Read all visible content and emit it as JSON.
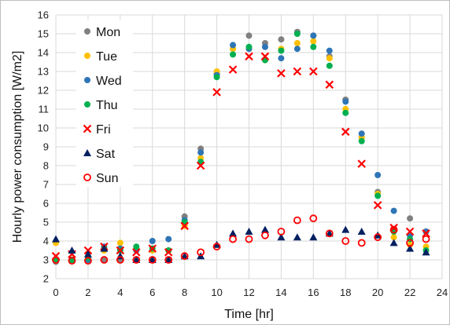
{
  "chart_data": {
    "type": "scatter",
    "xlabel": "Time [hr]",
    "ylabel": "Hourly power consumption [W/m2]",
    "xlim": [
      0,
      24
    ],
    "ylim": [
      2,
      16
    ],
    "x_ticks": [
      0,
      2,
      4,
      6,
      8,
      10,
      12,
      14,
      16,
      18,
      20,
      22,
      24
    ],
    "y_ticks": [
      2,
      3,
      4,
      5,
      6,
      7,
      8,
      9,
      10,
      11,
      12,
      13,
      14,
      15,
      16
    ],
    "grid": true,
    "legend_position": "top-left",
    "x": [
      0,
      1,
      2,
      3,
      4,
      5,
      6,
      7,
      8,
      9,
      10,
      11,
      12,
      13,
      14,
      15,
      16,
      17,
      18,
      19,
      20,
      21,
      22,
      23
    ],
    "series": [
      {
        "name": "Mon",
        "marker": "circle",
        "color": "#808080",
        "values": [
          2.9,
          3.0,
          3.0,
          3.0,
          3.0,
          3.0,
          3.0,
          3.0,
          5.3,
          8.9,
          12.9,
          14.2,
          14.9,
          14.5,
          14.7,
          15.1,
          14.9,
          13.8,
          11.5,
          9.5,
          6.6,
          4.6,
          5.2,
          4.5
        ]
      },
      {
        "name": "Tue",
        "marker": "circle",
        "color": "#FFC000",
        "values": [
          3.9,
          3.0,
          3.0,
          3.5,
          3.9,
          3.6,
          3.5,
          3.5,
          4.8,
          8.4,
          13.0,
          14.2,
          14.2,
          13.6,
          14.2,
          14.5,
          14.6,
          13.7,
          11.0,
          9.5,
          6.5,
          4.2,
          3.8,
          3.7
        ]
      },
      {
        "name": "Wed",
        "marker": "circle",
        "color": "#2E75B6",
        "values": [
          3.0,
          3.0,
          3.0,
          3.7,
          3.6,
          3.5,
          4.0,
          4.1,
          5.1,
          8.7,
          12.8,
          14.4,
          14.2,
          14.3,
          13.7,
          14.2,
          14.9,
          14.1,
          11.4,
          9.7,
          7.5,
          5.6,
          4.3,
          4.5
        ]
      },
      {
        "name": "Thu",
        "marker": "circle",
        "color": "#00B050",
        "values": [
          3.0,
          3.0,
          3.1,
          3.6,
          3.5,
          3.7,
          3.6,
          3.5,
          5.0,
          8.2,
          12.7,
          13.9,
          14.3,
          13.6,
          14.1,
          15.0,
          14.3,
          13.3,
          10.8,
          9.3,
          6.4,
          4.5,
          4.1,
          3.5
        ]
      },
      {
        "name": "Fri",
        "marker": "x",
        "color": "#FF0000",
        "values": [
          3.2,
          3.3,
          3.5,
          3.7,
          3.5,
          3.4,
          3.6,
          3.4,
          4.8,
          8.0,
          11.9,
          13.1,
          13.8,
          13.8,
          12.9,
          13.0,
          13.0,
          12.3,
          9.8,
          8.1,
          5.9,
          4.7,
          4.5,
          4.4
        ]
      },
      {
        "name": "Sat",
        "marker": "triangle",
        "color": "#002060",
        "values": [
          4.1,
          3.5,
          3.3,
          3.6,
          3.2,
          3.0,
          3.0,
          3.0,
          3.2,
          3.2,
          3.8,
          4.4,
          4.5,
          4.6,
          4.2,
          4.2,
          4.2,
          4.4,
          4.6,
          4.5,
          4.3,
          3.9,
          3.6,
          3.4
        ]
      },
      {
        "name": "Sun",
        "marker": "circle-open",
        "color": "#FF0000",
        "values": [
          3.0,
          2.95,
          2.95,
          3.0,
          3.0,
          3.0,
          3.0,
          3.0,
          3.2,
          3.4,
          3.7,
          4.1,
          4.1,
          4.3,
          4.5,
          5.1,
          5.2,
          4.4,
          4.0,
          3.9,
          4.2,
          4.6,
          3.9,
          4.1
        ]
      }
    ]
  }
}
